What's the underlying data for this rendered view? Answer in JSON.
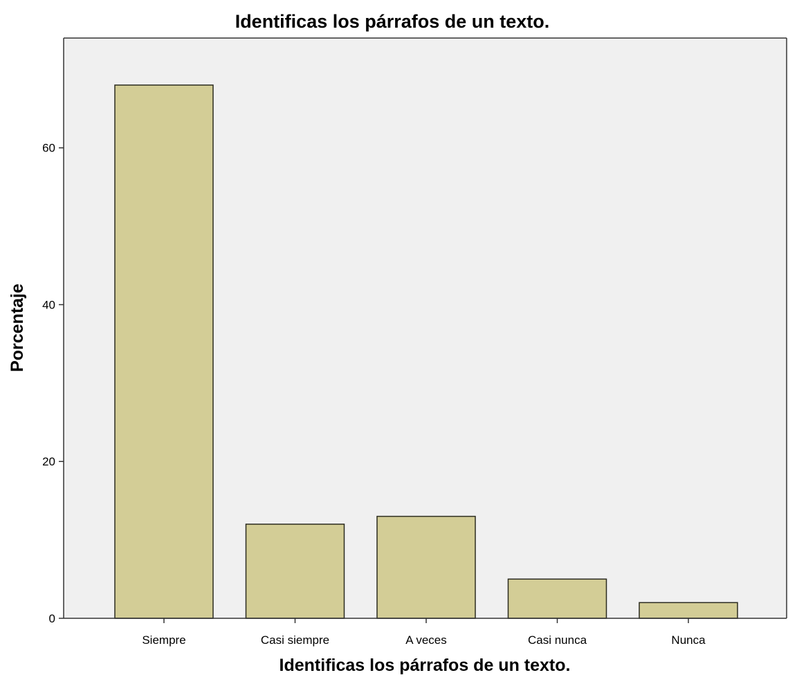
{
  "chart_data": {
    "type": "bar",
    "title": "Identificas los párrafos de un texto.",
    "xlabel": "Identificas los párrafos de un texto.",
    "ylabel": "Porcentaje",
    "categories": [
      "Siempre",
      "Casi siempre",
      "A veces",
      "Casi nunca",
      "Nunca"
    ],
    "values": [
      68,
      12,
      13,
      5,
      2
    ],
    "yticks": [
      0,
      20,
      40,
      60
    ],
    "ylim": [
      0,
      74
    ],
    "grid": false,
    "legend": "none",
    "colors": {
      "bar_fill": "#d3cd96",
      "bar_stroke": "#2b2b1f",
      "plot_background": "#f0f0f0",
      "axis": "#333333"
    }
  }
}
